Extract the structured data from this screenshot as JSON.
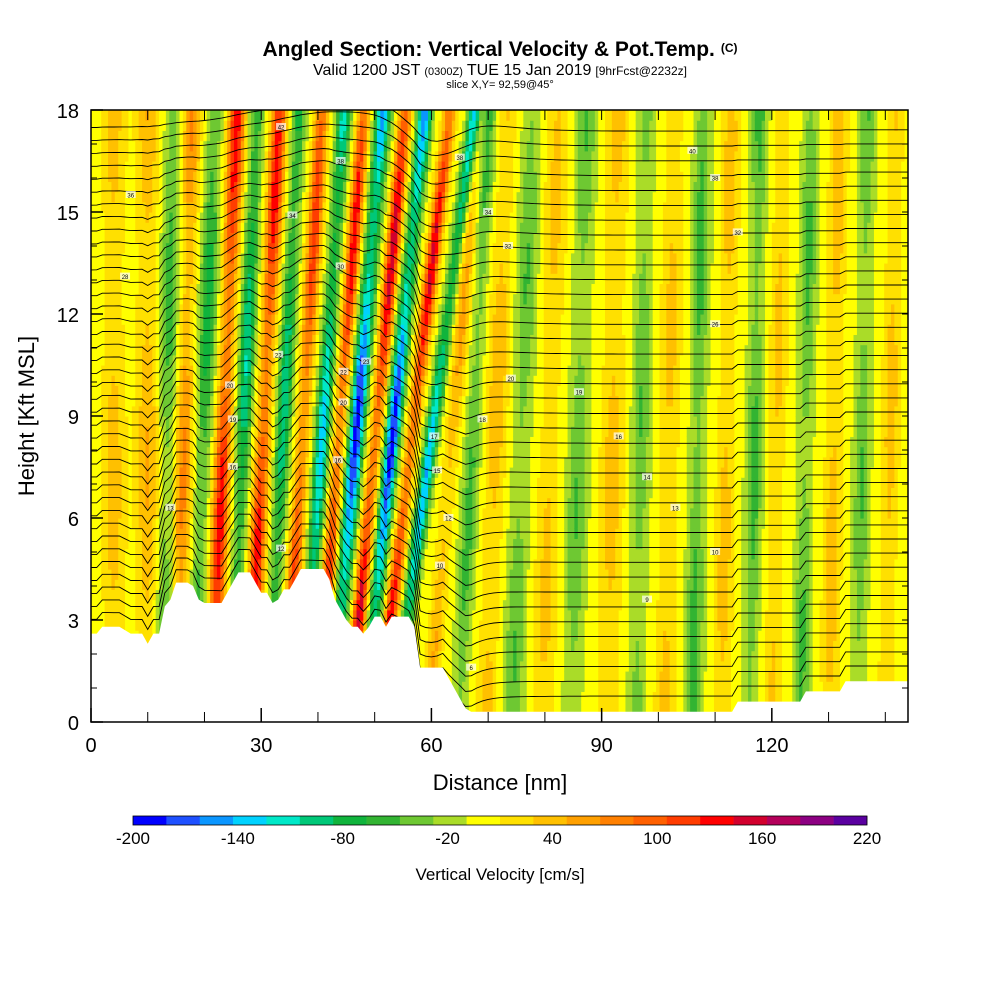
{
  "chart_data": {
    "type": "heatmap",
    "title": "Angled Section: Vertical Velocity & Pot.Temp.",
    "title_suffix": "(C)",
    "subtitle": {
      "prefix": "Valid 1200 JST",
      "utc": "(0300Z)",
      "date": "TUE 15 Jan 2019",
      "fcst": "[9hrFcst@2232z]"
    },
    "slice_label": "slice X,Y= 92,59@45°",
    "xlabel": "Distance [nm]",
    "ylabel": "Height [Kft MSL]",
    "xlim": [
      0,
      144
    ],
    "ylim": [
      0,
      18
    ],
    "x_ticks": [
      0,
      30,
      60,
      90,
      120
    ],
    "y_ticks": [
      0,
      3,
      6,
      9,
      12,
      15,
      18
    ],
    "colorbar": {
      "label": "Vertical Velocity [cm/s]",
      "tick_labels": [
        -200,
        -140,
        -80,
        -20,
        40,
        100,
        160,
        220
      ],
      "levels": [
        -200,
        -180,
        -160,
        -140,
        -120,
        -100,
        -80,
        -60,
        -40,
        -20,
        0,
        20,
        40,
        60,
        80,
        100,
        120,
        140,
        160,
        180,
        200,
        220
      ],
      "colors": [
        "#0000ff",
        "#1e50ff",
        "#0a96ff",
        "#00d2ff",
        "#00e8c8",
        "#00c878",
        "#10b43c",
        "#32b432",
        "#6ec832",
        "#aadc28",
        "#ffff00",
        "#ffe000",
        "#ffc000",
        "#ffa000",
        "#ff8000",
        "#ff6000",
        "#ff3c00",
        "#ff0000",
        "#d2002d",
        "#b4005a",
        "#8c0082",
        "#5a00a0"
      ]
    },
    "terrain_kft": [
      [
        0,
        2.6
      ],
      [
        1,
        2.6
      ],
      [
        2,
        2.8
      ],
      [
        5,
        2.8
      ],
      [
        7,
        2.6
      ],
      [
        9,
        2.6
      ],
      [
        10,
        2.3
      ],
      [
        11,
        2.6
      ],
      [
        12,
        2.6
      ],
      [
        13,
        3.4
      ],
      [
        14,
        3.6
      ],
      [
        15,
        4.1
      ],
      [
        16,
        4.1
      ],
      [
        17,
        4.1
      ],
      [
        18,
        4.0
      ],
      [
        19,
        3.6
      ],
      [
        20,
        3.5
      ],
      [
        23,
        3.5
      ],
      [
        24,
        3.8
      ],
      [
        25,
        4.1
      ],
      [
        26,
        4.4
      ],
      [
        28,
        4.4
      ],
      [
        29,
        4.1
      ],
      [
        30,
        3.8
      ],
      [
        31,
        3.8
      ],
      [
        32,
        3.5
      ],
      [
        33,
        3.6
      ],
      [
        34,
        3.9
      ],
      [
        35,
        3.9
      ],
      [
        36,
        4.2
      ],
      [
        37,
        4.5
      ],
      [
        41,
        4.5
      ],
      [
        42,
        4.2
      ],
      [
        43,
        3.6
      ],
      [
        44,
        3.3
      ],
      [
        45,
        3.0
      ],
      [
        46,
        2.8
      ],
      [
        47,
        2.8
      ],
      [
        48,
        2.6
      ],
      [
        49,
        2.8
      ],
      [
        50,
        3.1
      ],
      [
        51,
        3.1
      ],
      [
        52,
        2.8
      ],
      [
        53,
        3.1
      ],
      [
        56,
        3.1
      ],
      [
        57,
        2.8
      ],
      [
        58,
        1.6
      ],
      [
        62,
        1.6
      ],
      [
        63,
        1.3
      ],
      [
        64,
        1.0
      ],
      [
        65,
        0.7
      ],
      [
        66,
        0.4
      ],
      [
        67,
        0.3
      ],
      [
        113,
        0.3
      ],
      [
        114,
        0.6
      ],
      [
        125,
        0.6
      ],
      [
        126,
        0.9
      ],
      [
        132,
        0.9
      ],
      [
        133,
        1.2
      ],
      [
        144,
        1.2
      ]
    ],
    "vv_bands": [
      {
        "x": 4,
        "amp": 45,
        "w": 2.0,
        "tilt": 0.0
      },
      {
        "x": 10,
        "amp": 55,
        "w": 2.0,
        "tilt": 0.0
      },
      {
        "x": 13.5,
        "amp": -60,
        "w": 1.6,
        "tilt": 0.1
      },
      {
        "x": 16.5,
        "amp": 80,
        "w": 1.5,
        "tilt": 0.15
      },
      {
        "x": 20,
        "amp": -80,
        "w": 1.5,
        "tilt": 0.2
      },
      {
        "x": 23.5,
        "amp": 150,
        "w": 1.4,
        "tilt": 0.25
      },
      {
        "x": 27,
        "amp": -110,
        "w": 1.3,
        "tilt": 0.25
      },
      {
        "x": 30.5,
        "amp": 150,
        "w": 1.3,
        "tilt": 0.3
      },
      {
        "x": 34,
        "amp": -110,
        "w": 1.2,
        "tilt": 0.3
      },
      {
        "x": 37.5,
        "amp": 130,
        "w": 1.2,
        "tilt": 0.35
      },
      {
        "x": 41,
        "amp": -140,
        "w": 1.2,
        "tilt": 0.4
      },
      {
        "x": 44,
        "amp": 150,
        "w": 1.1,
        "tilt": 0.45
      },
      {
        "x": 47,
        "amp": -200,
        "w": 1.3,
        "tilt": 0.5
      },
      {
        "x": 50.5,
        "amp": 170,
        "w": 1.1,
        "tilt": 0.55
      },
      {
        "x": 53.5,
        "amp": -200,
        "w": 1.2,
        "tilt": 0.6
      },
      {
        "x": 57,
        "amp": 160,
        "w": 1.1,
        "tilt": 0.7
      },
      {
        "x": 60.5,
        "amp": -150,
        "w": 1.1,
        "tilt": 0.8
      },
      {
        "x": 64,
        "amp": 60,
        "w": 1.3,
        "tilt": 0.5
      },
      {
        "x": 67.5,
        "amp": -60,
        "w": 1.4,
        "tilt": 0.3
      },
      {
        "x": 71.5,
        "amp": 50,
        "w": 1.8,
        "tilt": 0.2
      },
      {
        "x": 76,
        "amp": -50,
        "w": 1.8,
        "tilt": 0.2
      },
      {
        "x": 81,
        "amp": 40,
        "w": 2.0,
        "tilt": 0.15
      },
      {
        "x": 86,
        "amp": -50,
        "w": 1.8,
        "tilt": 0.15
      },
      {
        "x": 92,
        "amp": 45,
        "w": 2.0,
        "tilt": 0.1
      },
      {
        "x": 97,
        "amp": -50,
        "w": 1.6,
        "tilt": 0.1
      },
      {
        "x": 102,
        "amp": 40,
        "w": 1.8,
        "tilt": 0.1
      },
      {
        "x": 107,
        "amp": -60,
        "w": 1.5,
        "tilt": 0.1
      },
      {
        "x": 112,
        "amp": 45,
        "w": 1.6,
        "tilt": 0.1
      },
      {
        "x": 117,
        "amp": -60,
        "w": 1.4,
        "tilt": 0.1
      },
      {
        "x": 121,
        "amp": 40,
        "w": 1.5,
        "tilt": 0.1
      },
      {
        "x": 126,
        "amp": -55,
        "w": 1.4,
        "tilt": 0.1
      },
      {
        "x": 131,
        "amp": 50,
        "w": 1.5,
        "tilt": 0.1
      },
      {
        "x": 136,
        "amp": -50,
        "w": 1.4,
        "tilt": 0.1
      },
      {
        "x": 141,
        "amp": 45,
        "w": 1.5,
        "tilt": 0.1
      }
    ],
    "isentropes_C": [
      4,
      5,
      6,
      7,
      8,
      9,
      10,
      11,
      12,
      13,
      14,
      15,
      16,
      17,
      18,
      19,
      20,
      21,
      22,
      23,
      24,
      25,
      26,
      27,
      28,
      29,
      30,
      31,
      32,
      33,
      34,
      35,
      36,
      37,
      38,
      39,
      40,
      41,
      42
    ],
    "isentrope_labels": [
      {
        "x": 7,
        "y": 15.5,
        "text": "36"
      },
      {
        "x": 6,
        "y": 13.1,
        "text": "28"
      },
      {
        "x": 14,
        "y": 6.3,
        "text": "13"
      },
      {
        "x": 24.5,
        "y": 9.9,
        "text": "20"
      },
      {
        "x": 25,
        "y": 8.9,
        "text": "19"
      },
      {
        "x": 25,
        "y": 7.5,
        "text": "16"
      },
      {
        "x": 33.5,
        "y": 17.5,
        "text": "42"
      },
      {
        "x": 35.5,
        "y": 14.9,
        "text": "34"
      },
      {
        "x": 33,
        "y": 10.8,
        "text": "22"
      },
      {
        "x": 33.5,
        "y": 5.1,
        "text": "12"
      },
      {
        "x": 44,
        "y": 16.5,
        "text": "38"
      },
      {
        "x": 44,
        "y": 13.4,
        "text": "30"
      },
      {
        "x": 44.5,
        "y": 10.3,
        "text": "22"
      },
      {
        "x": 44.5,
        "y": 9.4,
        "text": "20"
      },
      {
        "x": 43.5,
        "y": 7.7,
        "text": "16"
      },
      {
        "x": 48.5,
        "y": 10.6,
        "text": "23"
      },
      {
        "x": 60.5,
        "y": 8.4,
        "text": "17"
      },
      {
        "x": 61,
        "y": 7.4,
        "text": "15"
      },
      {
        "x": 63,
        "y": 6.0,
        "text": "12"
      },
      {
        "x": 61.5,
        "y": 4.6,
        "text": "10"
      },
      {
        "x": 65,
        "y": 16.6,
        "text": "38"
      },
      {
        "x": 70,
        "y": 15.0,
        "text": "34"
      },
      {
        "x": 73.5,
        "y": 14.0,
        "text": "32"
      },
      {
        "x": 67,
        "y": 1.6,
        "text": "6"
      },
      {
        "x": 69,
        "y": 8.9,
        "text": "18"
      },
      {
        "x": 74,
        "y": 10.1,
        "text": "20"
      },
      {
        "x": 86,
        "y": 9.7,
        "text": "19"
      },
      {
        "x": 93,
        "y": 8.4,
        "text": "16"
      },
      {
        "x": 98,
        "y": 7.2,
        "text": "14"
      },
      {
        "x": 103,
        "y": 6.3,
        "text": "13"
      },
      {
        "x": 98,
        "y": 3.6,
        "text": "9"
      },
      {
        "x": 106,
        "y": 16.8,
        "text": "40"
      },
      {
        "x": 110,
        "y": 16.0,
        "text": "38"
      },
      {
        "x": 114,
        "y": 14.4,
        "text": "32"
      },
      {
        "x": 110,
        "y": 11.7,
        "text": "26"
      },
      {
        "x": 110,
        "y": 5.0,
        "text": "10"
      }
    ]
  }
}
